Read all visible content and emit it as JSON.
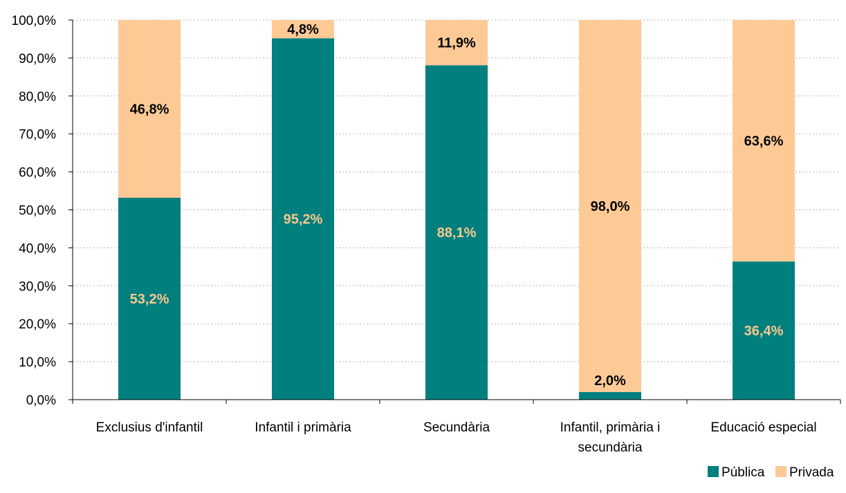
{
  "chart_data": {
    "type": "bar",
    "stacked": true,
    "percent_stacked": true,
    "categories": [
      [
        "Exclusius d'infantil"
      ],
      [
        "Infantil i primària"
      ],
      [
        "Secundària"
      ],
      [
        "Infantil, primària i",
        "secundària"
      ],
      [
        "Educació especial"
      ]
    ],
    "series": [
      {
        "name": "Pública",
        "color": "#007f7f",
        "label_color": "#f9c98c",
        "values": [
          53.2,
          95.2,
          88.1,
          2.0,
          36.4
        ],
        "labels": [
          "53,2%",
          "95,2%",
          "88,1%",
          "2,0%",
          "36,4%"
        ]
      },
      {
        "name": "Privada",
        "color": "#fdca96",
        "label_color": "#000000",
        "values": [
          46.8,
          4.8,
          11.9,
          98.0,
          63.6
        ],
        "labels": [
          "46,8%",
          "4,8%",
          "11,9%",
          "98,0%",
          "63,6%"
        ]
      }
    ],
    "y_ticks": [
      "0,0%",
      "10,0%",
      "20,0%",
      "30,0%",
      "40,0%",
      "50,0%",
      "60,0%",
      "70,0%",
      "80,0%",
      "90,0%",
      "100,0%"
    ],
    "ylim": [
      0,
      100
    ],
    "grid": true,
    "legend_position": "bottom-right",
    "title": "",
    "xlabel": "",
    "ylabel": ""
  }
}
